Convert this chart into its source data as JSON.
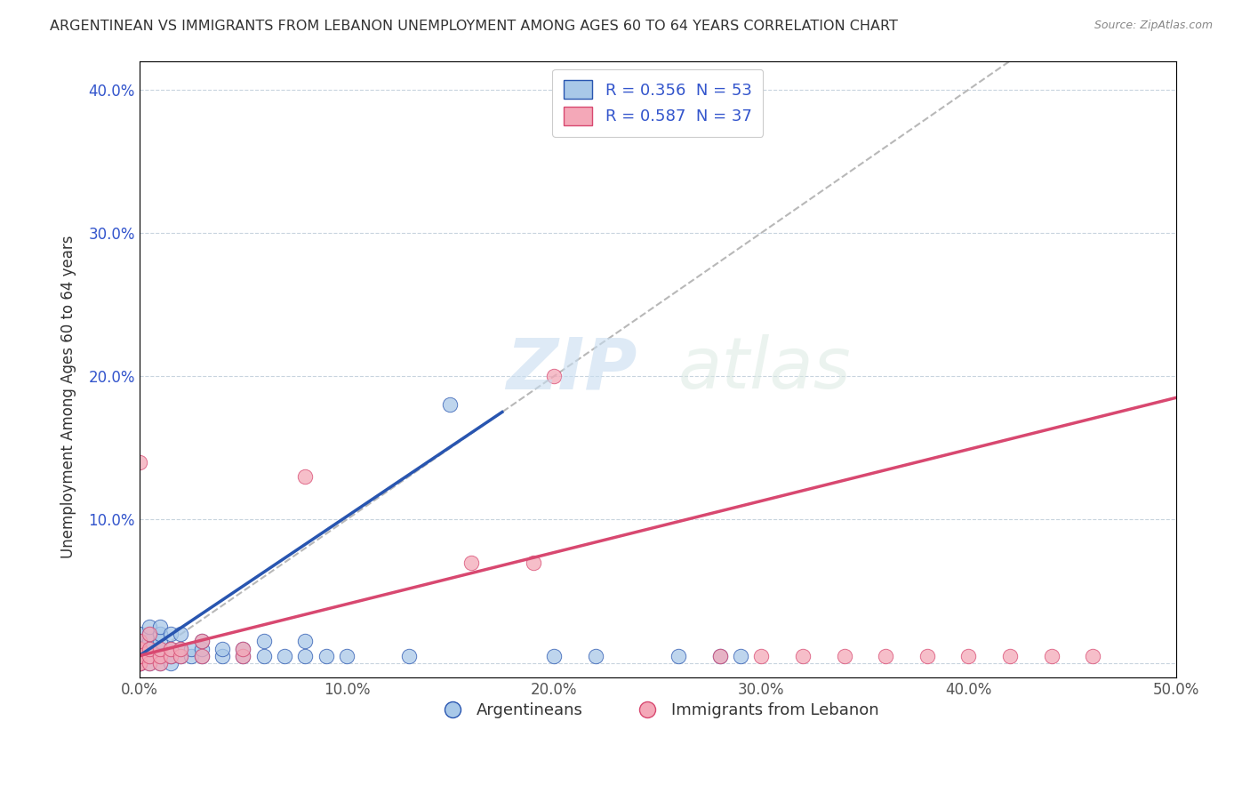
{
  "title": "ARGENTINEAN VS IMMIGRANTS FROM LEBANON UNEMPLOYMENT AMONG AGES 60 TO 64 YEARS CORRELATION CHART",
  "source": "Source: ZipAtlas.com",
  "ylabel": "Unemployment Among Ages 60 to 64 years",
  "xlim": [
    0,
    0.5
  ],
  "ylim": [
    -0.01,
    0.42
  ],
  "xticks": [
    0.0,
    0.1,
    0.2,
    0.3,
    0.4,
    0.5
  ],
  "xticklabels": [
    "0.0%",
    "10.0%",
    "20.0%",
    "30.0%",
    "40.0%",
    "50.0%"
  ],
  "yticks": [
    0.0,
    0.1,
    0.2,
    0.3,
    0.4
  ],
  "yticklabels": [
    "",
    "10.0%",
    "20.0%",
    "30.0%",
    "40.0%"
  ],
  "legend_label1": "Argentineans",
  "legend_label2": "Immigrants from Lebanon",
  "R1": 0.356,
  "N1": 53,
  "R2": 0.587,
  "N2": 37,
  "color1": "#a8c8e8",
  "color2": "#f4a8b8",
  "line_color1": "#2855b0",
  "line_color2": "#d84870",
  "diagonal_color": "#b8b8b8",
  "watermark_zip": "ZIP",
  "watermark_atlas": "atlas",
  "blue_x": [
    0.0,
    0.0,
    0.0,
    0.0,
    0.0,
    0.0,
    0.0,
    0.0,
    0.0,
    0.0,
    0.005,
    0.005,
    0.005,
    0.005,
    0.005,
    0.005,
    0.005,
    0.01,
    0.01,
    0.01,
    0.01,
    0.01,
    0.01,
    0.015,
    0.015,
    0.015,
    0.015,
    0.02,
    0.02,
    0.02,
    0.025,
    0.025,
    0.03,
    0.03,
    0.03,
    0.04,
    0.04,
    0.05,
    0.05,
    0.06,
    0.06,
    0.07,
    0.08,
    0.08,
    0.09,
    0.1,
    0.13,
    0.15,
    0.2,
    0.22,
    0.26,
    0.28,
    0.29
  ],
  "blue_y": [
    0.0,
    0.0,
    0.0,
    0.005,
    0.005,
    0.01,
    0.01,
    0.01,
    0.015,
    0.02,
    0.0,
    0.005,
    0.01,
    0.01,
    0.015,
    0.02,
    0.025,
    0.0,
    0.005,
    0.01,
    0.015,
    0.02,
    0.025,
    0.0,
    0.005,
    0.01,
    0.02,
    0.005,
    0.01,
    0.02,
    0.005,
    0.01,
    0.005,
    0.01,
    0.015,
    0.005,
    0.01,
    0.005,
    0.01,
    0.005,
    0.015,
    0.005,
    0.005,
    0.015,
    0.005,
    0.005,
    0.005,
    0.18,
    0.005,
    0.005,
    0.005,
    0.005,
    0.005
  ],
  "pink_x": [
    0.0,
    0.0,
    0.0,
    0.0,
    0.0,
    0.0,
    0.0,
    0.0,
    0.005,
    0.005,
    0.005,
    0.005,
    0.01,
    0.01,
    0.01,
    0.015,
    0.015,
    0.02,
    0.02,
    0.03,
    0.03,
    0.05,
    0.05,
    0.08,
    0.16,
    0.19,
    0.2,
    0.28,
    0.3,
    0.32,
    0.34,
    0.36,
    0.38,
    0.4,
    0.42,
    0.44,
    0.46
  ],
  "pink_y": [
    0.0,
    0.0,
    0.005,
    0.005,
    0.01,
    0.01,
    0.015,
    0.14,
    0.0,
    0.005,
    0.01,
    0.02,
    0.0,
    0.005,
    0.01,
    0.005,
    0.01,
    0.005,
    0.01,
    0.005,
    0.015,
    0.005,
    0.01,
    0.13,
    0.07,
    0.07,
    0.2,
    0.005,
    0.005,
    0.005,
    0.005,
    0.005,
    0.005,
    0.005,
    0.005,
    0.005,
    0.005
  ],
  "blue_line_x0": 0.0,
  "blue_line_x1": 0.175,
  "pink_line_x0": 0.0,
  "pink_line_x1": 0.5,
  "blue_line_y0": 0.005,
  "blue_line_y1": 0.175,
  "pink_line_y0": 0.005,
  "pink_line_y1": 0.185
}
